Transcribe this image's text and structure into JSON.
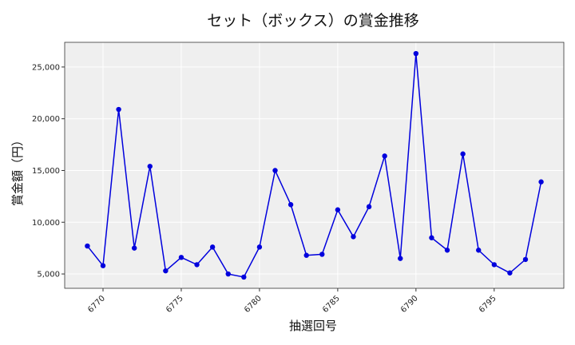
{
  "chart_data": {
    "type": "line",
    "title": "セット（ボックス）の賞金推移",
    "xlabel": "抽選回号",
    "ylabel": "賞金額（円）",
    "x": [
      6769,
      6770,
      6771,
      6772,
      6773,
      6774,
      6775,
      6776,
      6777,
      6778,
      6779,
      6780,
      6781,
      6782,
      6783,
      6784,
      6785,
      6786,
      6787,
      6788,
      6789,
      6790,
      6791,
      6792,
      6793,
      6794,
      6795,
      6796,
      6797,
      6798
    ],
    "series": [
      {
        "values": [
          7700,
          5800,
          20900,
          7500,
          15400,
          5300,
          6600,
          5900,
          7600,
          5000,
          4700,
          7600,
          15000,
          11700,
          6800,
          6900,
          11200,
          8600,
          11500,
          16400,
          6500,
          26300,
          8500,
          7300,
          16600,
          7300,
          5900,
          5100,
          6400,
          13900
        ],
        "color": "#0000dd"
      }
    ],
    "xticks": [
      6770,
      6775,
      6780,
      6785,
      6790,
      6795
    ],
    "yticks": [
      5000,
      10000,
      15000,
      20000,
      25000
    ],
    "ytick_labels": [
      "5,000",
      "10,000",
      "15,000",
      "20,000",
      "25,000"
    ],
    "xlim": [
      6767.55,
      6799.45
    ],
    "ylim": [
      3615,
      27385
    ],
    "grid": true,
    "background": "#efefef",
    "grid_color": "#ffffff"
  }
}
